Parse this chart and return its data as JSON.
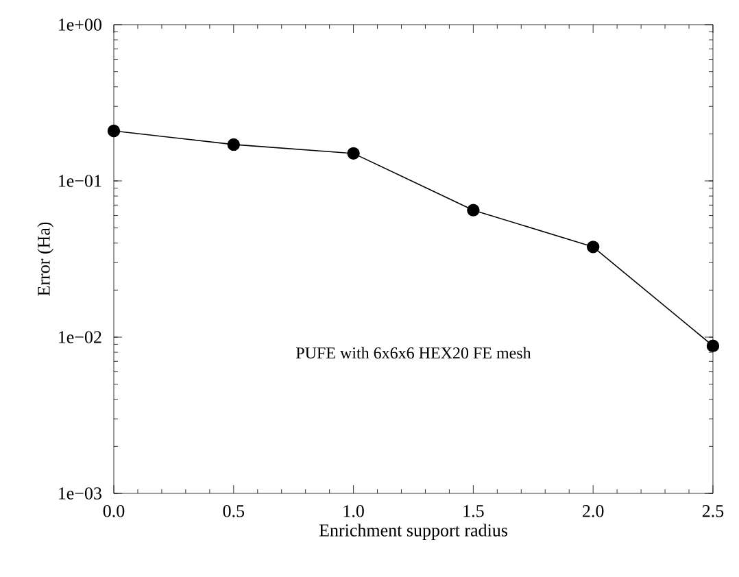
{
  "chart_data": {
    "type": "line",
    "xlabel": "Enrichment support radius",
    "ylabel": "Error (Ha)",
    "x": [
      0.0,
      0.5,
      1.0,
      1.5,
      2.0,
      2.5
    ],
    "series": [
      {
        "color": "#000000",
        "values": [
          0.209,
          0.171,
          0.15,
          0.065,
          0.0378,
          0.0088
        ]
      }
    ],
    "log": "y",
    "marker": "circle",
    "line_style": "solid",
    "xlim": [
      0,
      2.5
    ],
    "ylim": [
      0.001,
      1
    ],
    "xticks": [
      {
        "value": 0,
        "label": "0.0"
      },
      {
        "value": 0.5,
        "label": "0.5"
      },
      {
        "value": 1,
        "label": "1.0"
      },
      {
        "value": 1.5,
        "label": "1.5"
      },
      {
        "value": 2,
        "label": "2.0"
      },
      {
        "value": 2.5,
        "label": "2.5"
      }
    ],
    "yticks": [
      {
        "value": 0.001,
        "label": "1e−03"
      },
      {
        "value": 0.01,
        "label": "1e−02"
      },
      {
        "value": 0.1,
        "label": "1e−01"
      },
      {
        "value": 1,
        "label": "1e+00"
      }
    ],
    "annotations": [
      "PUFE with 6x6x6 HEX20 FE mesh"
    ],
    "grid": false
  }
}
